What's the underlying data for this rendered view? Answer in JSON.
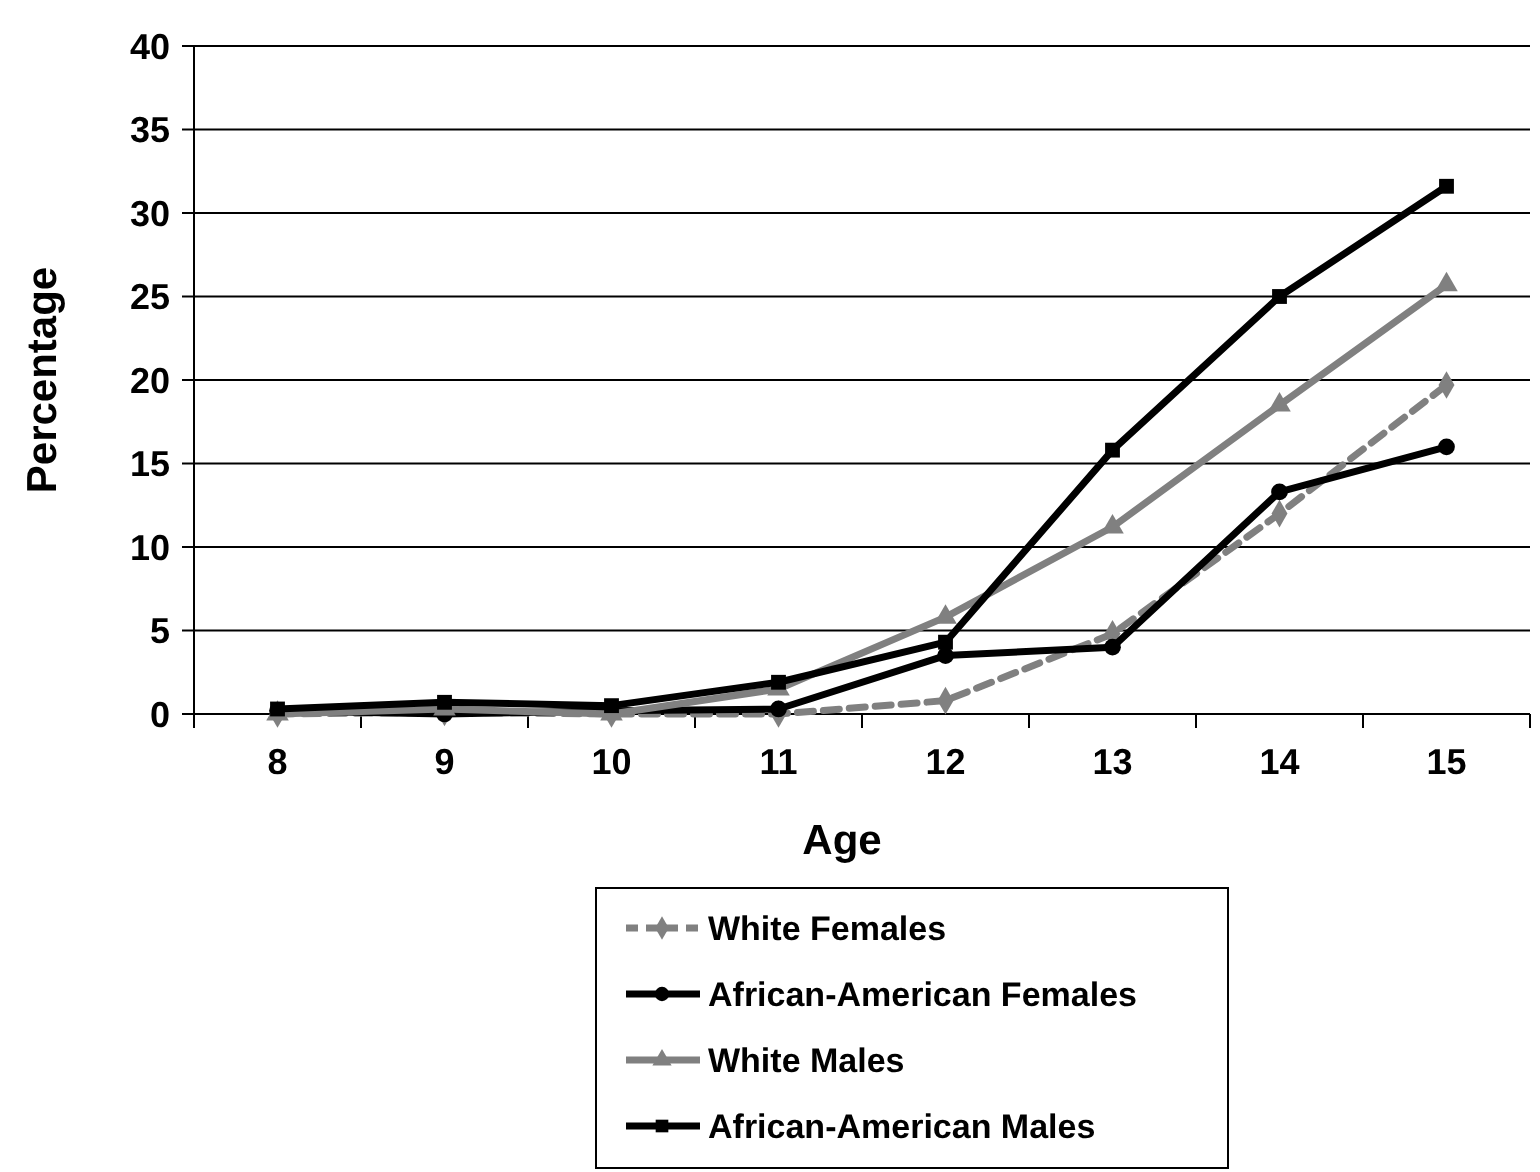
{
  "chart_data": {
    "type": "line",
    "xlabel": "Age",
    "ylabel": "Percentage",
    "categories": [
      "8",
      "9",
      "10",
      "11",
      "12",
      "13",
      "14",
      "15"
    ],
    "series": [
      {
        "name": "White Females",
        "color": "#808080",
        "marker": "diamond",
        "line_style": "dashed",
        "values": [
          0,
          0.1,
          0,
          0,
          0.8,
          4.8,
          12,
          19.7
        ]
      },
      {
        "name": "African-American Females",
        "color": "#000000",
        "marker": "circle",
        "line_style": "solid",
        "values": [
          0.2,
          0,
          0.2,
          0.3,
          3.5,
          4,
          13.3,
          16
        ]
      },
      {
        "name": "White Males",
        "color": "#808080",
        "marker": "triangle",
        "line_style": "solid",
        "values": [
          0,
          0.3,
          0,
          1.5,
          5.8,
          11.2,
          18.5,
          25.7
        ]
      },
      {
        "name": "African-American Males",
        "color": "#000000",
        "marker": "square",
        "line_style": "solid",
        "values": [
          0.3,
          0.7,
          0.5,
          1.9,
          4.3,
          15.8,
          25,
          31.6
        ]
      }
    ],
    "ylim": [
      0,
      40
    ],
    "yticks": [
      0,
      5,
      10,
      15,
      20,
      25,
      30,
      35,
      40
    ],
    "grid": "y",
    "legend": "bottom"
  }
}
